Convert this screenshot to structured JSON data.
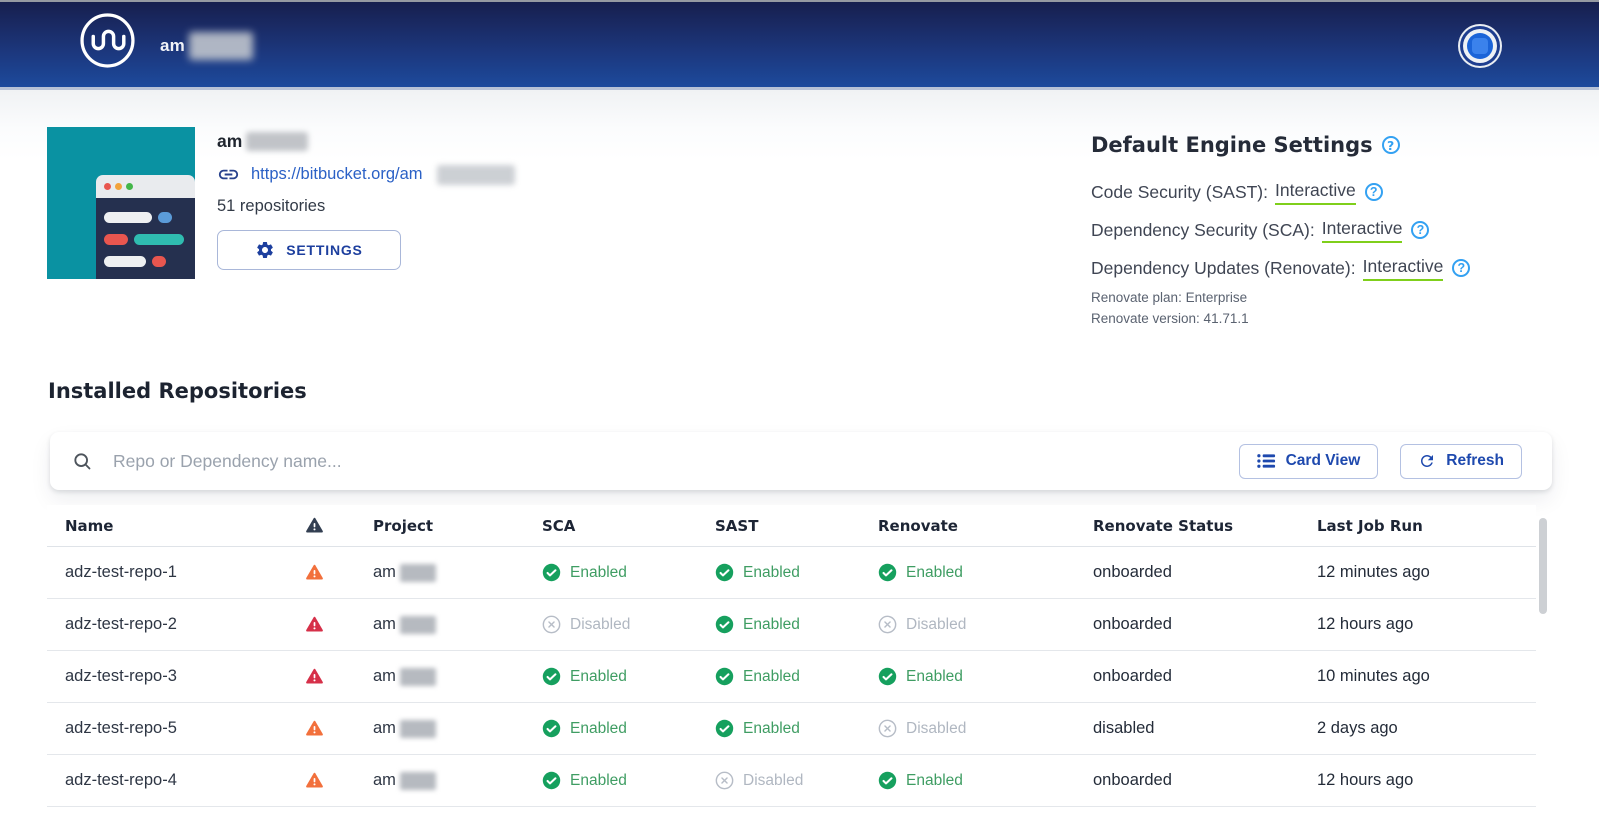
{
  "navbar": {
    "brand_prefix": "am"
  },
  "profile": {
    "name_prefix": "am",
    "url_prefix": "https://bitbucket.org/am",
    "repo_count": "51 repositories",
    "settings_label": "SETTINGS"
  },
  "engine_settings": {
    "title": "Default Engine Settings",
    "rows": [
      {
        "label": "Code Security (SAST):",
        "value": "Interactive"
      },
      {
        "label": "Dependency Security (SCA):",
        "value": "Interactive"
      },
      {
        "label": "Dependency Updates (Renovate):",
        "value": "Interactive"
      }
    ],
    "plan": "Renovate plan: Enterprise",
    "version": "Renovate version: 41.71.1"
  },
  "repos_section": {
    "title": "Installed Repositories",
    "search_placeholder": "Repo or Dependency name...",
    "card_view_label": "Card View",
    "refresh_label": "Refresh"
  },
  "table": {
    "headers": [
      "Name",
      "Project",
      "SCA",
      "SAST",
      "Renovate",
      "Renovate Status",
      "Last Job Run"
    ],
    "rows": [
      {
        "name": "adz-test-repo-1",
        "warning": "orange",
        "project_prefix": "am",
        "sca": "Enabled",
        "sast": "Enabled",
        "renovate": "Enabled",
        "status": "onboarded",
        "last_run": "12 minutes ago"
      },
      {
        "name": "adz-test-repo-2",
        "warning": "red",
        "project_prefix": "am",
        "sca": "Disabled",
        "sast": "Enabled",
        "renovate": "Disabled",
        "status": "onboarded",
        "last_run": "12 hours ago"
      },
      {
        "name": "adz-test-repo-3",
        "warning": "red",
        "project_prefix": "am",
        "sca": "Enabled",
        "sast": "Enabled",
        "renovate": "Enabled",
        "status": "onboarded",
        "last_run": "10 minutes ago"
      },
      {
        "name": "adz-test-repo-5",
        "warning": "orange",
        "project_prefix": "am",
        "sca": "Enabled",
        "sast": "Enabled",
        "renovate": "Disabled",
        "status": "disabled",
        "last_run": "2 days ago"
      },
      {
        "name": "adz-test-repo-4",
        "warning": "orange",
        "project_prefix": "am",
        "sca": "Enabled",
        "sast": "Disabled",
        "renovate": "Enabled",
        "status": "onboarded",
        "last_run": "12 hours ago"
      }
    ]
  },
  "icons": {
    "help_glyph": "?"
  },
  "colors": {
    "enabled_icon": "#16a05e",
    "enabled_text": "#3f9d63",
    "disabled": "#b7bdc7",
    "warning_orange": "#f2703c",
    "warning_red": "#d63049",
    "header_warning": "#333f52",
    "accent_blue": "#1e49ae",
    "underline_green": "#7fcf1b",
    "navbar_blue": "#1d4a9c",
    "teal_tile": "#0a92a2"
  }
}
